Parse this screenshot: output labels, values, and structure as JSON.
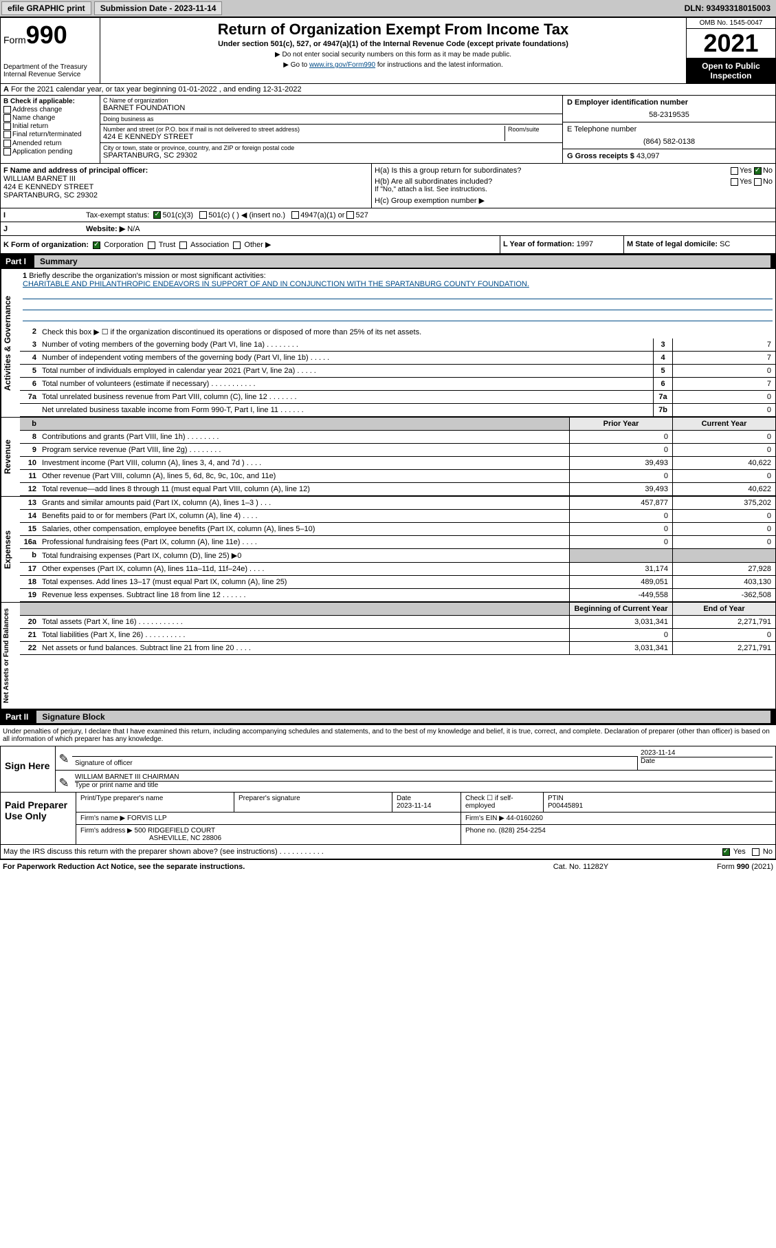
{
  "top": {
    "efile": "efile GRAPHIC print",
    "sub_label": "Submission Date - 2023-11-14",
    "dln": "DLN: 93493318015003"
  },
  "header": {
    "form_label": "Form",
    "form_num": "990",
    "dept": "Department of the Treasury Internal Revenue Service",
    "title": "Return of Organization Exempt From Income Tax",
    "subtitle": "Under section 501(c), 527, or 4947(a)(1) of the Internal Revenue Code (except private foundations)",
    "note1": "▶ Do not enter social security numbers on this form as it may be made public.",
    "note2_pre": "▶ Go to ",
    "note2_link": "www.irs.gov/Form990",
    "note2_post": " for instructions and the latest information.",
    "omb": "OMB No. 1545-0047",
    "year": "2021",
    "open": "Open to Public Inspection"
  },
  "row_a": "For the 2021 calendar year, or tax year beginning 01-01-2022  , and ending 12-31-2022",
  "col_b": {
    "title": "B Check if applicable:",
    "items": [
      "Address change",
      "Name change",
      "Initial return",
      "Final return/terminated",
      "Amended return",
      "Application pending"
    ]
  },
  "col_c": {
    "name_label": "C Name of organization",
    "name": "BARNET FOUNDATION",
    "dba_label": "Doing business as",
    "dba": "",
    "street_label": "Number and street (or P.O. box if mail is not delivered to street address)",
    "room_label": "Room/suite",
    "street": "424 E KENNEDY STREET",
    "city_label": "City or town, state or province, country, and ZIP or foreign postal code",
    "city": "SPARTANBURG, SC  29302"
  },
  "col_d": {
    "ein_label": "D Employer identification number",
    "ein": "58-2319535",
    "phone_label": "E Telephone number",
    "phone": "(864) 582-0138",
    "gross_label": "G Gross receipts $",
    "gross": "43,097"
  },
  "f": {
    "label": "F Name and address of principal officer:",
    "name": "WILLIAM BARNET III",
    "street": "424 E KENNEDY STREET",
    "city": "SPARTANBURG, SC  29302"
  },
  "h": {
    "ha": "H(a)  Is this a group return for subordinates?",
    "ha_ans": "No",
    "hb": "H(b)  Are all subordinates included?",
    "hb_note": "If \"No,\" attach a list. See instructions.",
    "hc": "H(c)  Group exemption number ▶"
  },
  "i": {
    "label": "Tax-exempt status:",
    "opt1": "501(c)(3)",
    "opt2": "501(c) (   ) ◀ (insert no.)",
    "opt3": "4947(a)(1) or",
    "opt4": "527"
  },
  "j": {
    "label": "Website: ▶",
    "val": "N/A"
  },
  "k": {
    "label": "K Form of organization:",
    "opts": [
      "Corporation",
      "Trust",
      "Association",
      "Other ▶"
    ]
  },
  "l": {
    "label": "L Year of formation:",
    "val": "1997"
  },
  "m": {
    "label": "M State of legal domicile:",
    "val": "SC"
  },
  "part1": {
    "header": "Part I",
    "title": "Summary",
    "sections": {
      "gov": "Activities & Governance",
      "rev": "Revenue",
      "exp": "Expenses",
      "net": "Net Assets or Fund Balances"
    },
    "line1_label": "Briefly describe the organization's mission or most significant activities:",
    "line1_text": "CHARITABLE AND PHILANTHROPIC ENDEAVORS IN SUPPORT OF AND IN CONJUNCTION WITH THE SPARTANBURG COUNTY FOUNDATION.",
    "line2": "Check this box ▶ ☐  if the organization discontinued its operations or disposed of more than 25% of its net assets.",
    "lines_gov": [
      {
        "n": "3",
        "t": "Number of voting members of the governing body (Part VI, line 1a)  .   .   .   .   .   .   .   .",
        "box": "3",
        "v": "7"
      },
      {
        "n": "4",
        "t": "Number of independent voting members of the governing body (Part VI, line 1b)  .   .   .   .   .",
        "box": "4",
        "v": "7"
      },
      {
        "n": "5",
        "t": "Total number of individuals employed in calendar year 2021 (Part V, line 2a)  .   .   .   .   .",
        "box": "5",
        "v": "0"
      },
      {
        "n": "6",
        "t": "Total number of volunteers (estimate if necessary)  .   .   .   .   .   .   .   .   .   .   .",
        "box": "6",
        "v": "7"
      },
      {
        "n": "7a",
        "t": "Total unrelated business revenue from Part VIII, column (C), line 12  .   .   .   .   .   .   .",
        "box": "7a",
        "v": "0"
      },
      {
        "n": "",
        "t": "Net unrelated business taxable income from Form 990-T, Part I, line 11  .   .   .   .   .   .",
        "box": "7b",
        "v": "0"
      }
    ],
    "col_py": "Prior Year",
    "col_cy": "Current Year",
    "lines_rev": [
      {
        "n": "8",
        "t": "Contributions and grants (Part VIII, line 1h)  .   .   .   .   .   .   .   .",
        "py": "0",
        "cy": "0"
      },
      {
        "n": "9",
        "t": "Program service revenue (Part VIII, line 2g)  .   .   .   .   .   .   .   .",
        "py": "0",
        "cy": "0"
      },
      {
        "n": "10",
        "t": "Investment income (Part VIII, column (A), lines 3, 4, and 7d )  .   .   .   .",
        "py": "39,493",
        "cy": "40,622"
      },
      {
        "n": "11",
        "t": "Other revenue (Part VIII, column (A), lines 5, 6d, 8c, 9c, 10c, and 11e)",
        "py": "0",
        "cy": "0"
      },
      {
        "n": "12",
        "t": "Total revenue—add lines 8 through 11 (must equal Part VIII, column (A), line 12)",
        "py": "39,493",
        "cy": "40,622"
      }
    ],
    "lines_exp": [
      {
        "n": "13",
        "t": "Grants and similar amounts paid (Part IX, column (A), lines 1–3 )  .   .   .",
        "py": "457,877",
        "cy": "375,202"
      },
      {
        "n": "14",
        "t": "Benefits paid to or for members (Part IX, column (A), line 4)  .   .   .   .",
        "py": "0",
        "cy": "0"
      },
      {
        "n": "15",
        "t": "Salaries, other compensation, employee benefits (Part IX, column (A), lines 5–10)",
        "py": "0",
        "cy": "0"
      },
      {
        "n": "16a",
        "t": "Professional fundraising fees (Part IX, column (A), line 11e)  .   .   .   .",
        "py": "0",
        "cy": "0"
      },
      {
        "n": "b",
        "t": "Total fundraising expenses (Part IX, column (D), line 25) ▶0",
        "py": "",
        "cy": "",
        "shade": true
      },
      {
        "n": "17",
        "t": "Other expenses (Part IX, column (A), lines 11a–11d, 11f–24e)  .   .   .   .",
        "py": "31,174",
        "cy": "27,928"
      },
      {
        "n": "18",
        "t": "Total expenses. Add lines 13–17 (must equal Part IX, column (A), line 25)",
        "py": "489,051",
        "cy": "403,130"
      },
      {
        "n": "19",
        "t": "Revenue less expenses. Subtract line 18 from line 12  .   .   .   .   .   .",
        "py": "-449,558",
        "cy": "-362,508"
      }
    ],
    "col_boy": "Beginning of Current Year",
    "col_eoy": "End of Year",
    "lines_net": [
      {
        "n": "20",
        "t": "Total assets (Part X, line 16)  .   .   .   .   .   .   .   .   .   .   .",
        "py": "3,031,341",
        "cy": "2,271,791"
      },
      {
        "n": "21",
        "t": "Total liabilities (Part X, line 26)  .   .   .   .   .   .   .   .   .   .",
        "py": "0",
        "cy": "0"
      },
      {
        "n": "22",
        "t": "Net assets or fund balances. Subtract line 21 from line 20  .   .   .   .",
        "py": "3,031,341",
        "cy": "2,271,791"
      }
    ]
  },
  "part2": {
    "header": "Part II",
    "title": "Signature Block",
    "para": "Under penalties of perjury, I declare that I have examined this return, including accompanying schedules and statements, and to the best of my knowledge and belief, it is true, correct, and complete. Declaration of preparer (other than officer) is based on all information of which preparer has any knowledge."
  },
  "sign": {
    "label": "Sign Here",
    "sig_label": "Signature of officer",
    "date": "2023-11-14",
    "date_label": "Date",
    "name": "WILLIAM BARNET III CHAIRMAN",
    "name_label": "Type or print name and title"
  },
  "paid": {
    "label": "Paid Preparer Use Only",
    "h_name": "Print/Type preparer's name",
    "h_sig": "Preparer's signature",
    "h_date": "Date",
    "date": "2023-11-14",
    "check_label": "Check ☐ if self-employed",
    "ptin_label": "PTIN",
    "ptin": "P00445891",
    "firm_name_label": "Firm's name    ▶",
    "firm_name": "FORVIS LLP",
    "firm_ein_label": "Firm's EIN ▶",
    "firm_ein": "44-0160260",
    "firm_addr_label": "Firm's address ▶",
    "firm_addr1": "500 RIDGEFIELD COURT",
    "firm_addr2": "ASHEVILLE, NC  28806",
    "phone_label": "Phone no.",
    "phone": "(828) 254-2254"
  },
  "may": "May the IRS discuss this return with the preparer shown above? (see instructions)  .   .   .   .   .   .   .   .   .   .   .",
  "footer": {
    "left": "For Paperwork Reduction Act Notice, see the separate instructions.",
    "mid": "Cat. No. 11282Y",
    "right": "Form 990 (2021)"
  }
}
